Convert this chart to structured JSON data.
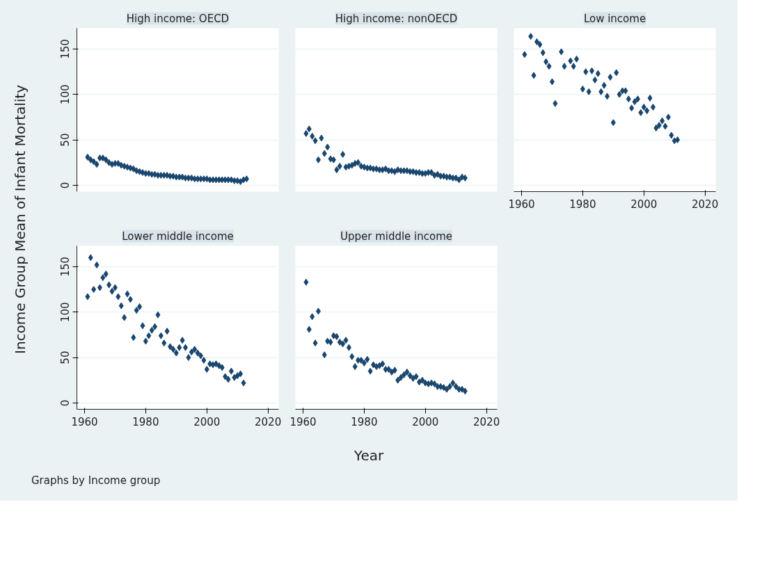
{
  "chart_data": [
    {
      "type": "scatter",
      "title": "High income: OECD",
      "ylabel": "Income Group Mean of Infant Mortality",
      "color": "#1a476f",
      "marker": "diamond",
      "grid": "y",
      "tick_labels": "y",
      "xlim": [
        1957.5,
        2023.5
      ],
      "ylim": [
        -7,
        173
      ],
      "xticks": [
        1960,
        1980,
        2000,
        2020
      ],
      "yticks": [
        0,
        50,
        100,
        150
      ],
      "x": [
        1961,
        1962,
        1963,
        1964,
        1965,
        1966,
        1967,
        1968,
        1969,
        1970,
        1971,
        1972,
        1973,
        1974,
        1975,
        1976,
        1977,
        1978,
        1979,
        1980,
        1981,
        1982,
        1983,
        1984,
        1985,
        1986,
        1987,
        1988,
        1989,
        1990,
        1991,
        1992,
        1993,
        1994,
        1995,
        1996,
        1997,
        1998,
        1999,
        2000,
        2001,
        2002,
        2003,
        2004,
        2005,
        2006,
        2007,
        2008,
        2009,
        2010,
        2011,
        2012,
        2013
      ],
      "values": [
        31,
        28,
        26,
        23,
        30,
        30,
        28,
        25,
        23,
        24,
        24,
        22,
        21,
        20,
        19,
        18,
        16,
        15,
        14,
        13,
        13,
        12,
        12,
        11,
        11,
        11,
        11,
        10,
        10,
        9,
        9,
        9,
        8,
        8,
        8,
        7,
        7,
        7,
        7,
        7,
        6,
        6,
        6,
        6,
        6,
        6,
        6,
        6,
        5,
        5,
        4,
        6,
        7
      ]
    },
    {
      "type": "scatter",
      "title": "High income: nonOECD",
      "color": "#1a476f",
      "marker": "diamond",
      "grid": "y",
      "tick_labels": false,
      "xlim": [
        1957.5,
        2023.5
      ],
      "ylim": [
        -7,
        173
      ],
      "xticks": [
        1960,
        1980,
        2000,
        2020
      ],
      "yticks": [
        0,
        50,
        100,
        150
      ],
      "x": [
        1961,
        1962,
        1963,
        1964,
        1965,
        1966,
        1967,
        1968,
        1969,
        1970,
        1971,
        1972,
        1973,
        1974,
        1975,
        1976,
        1977,
        1978,
        1979,
        1980,
        1981,
        1982,
        1983,
        1984,
        1985,
        1986,
        1987,
        1988,
        1989,
        1990,
        1991,
        1992,
        1993,
        1994,
        1995,
        1996,
        1997,
        1998,
        1999,
        2000,
        2001,
        2002,
        2003,
        2004,
        2005,
        2006,
        2007,
        2008,
        2009,
        2010,
        2011,
        2012,
        2013
      ],
      "values": [
        57,
        62,
        54,
        49,
        28,
        52,
        35,
        42,
        29,
        28,
        17,
        21,
        34,
        20,
        21,
        22,
        24,
        25,
        21,
        20,
        19,
        19,
        18,
        18,
        17,
        17,
        18,
        16,
        16,
        15,
        17,
        16,
        16,
        16,
        15,
        15,
        14,
        14,
        13,
        13,
        14,
        14,
        11,
        12,
        10,
        10,
        9,
        9,
        8,
        8,
        6,
        9,
        8
      ]
    },
    {
      "type": "scatter",
      "title": "Low income",
      "color": "#1a476f",
      "marker": "diamond",
      "grid": "y",
      "tick_labels": "x",
      "xlim": [
        1957.5,
        2023.5
      ],
      "ylim": [
        -7,
        173
      ],
      "xticks": [
        1960,
        1980,
        2000,
        2020
      ],
      "yticks": [
        0,
        50,
        100,
        150
      ],
      "x": [
        1961,
        1963,
        1964,
        1965,
        1966,
        1967,
        1968,
        1969,
        1970,
        1971,
        1973,
        1974,
        1976,
        1977,
        1978,
        1980,
        1981,
        1982,
        1983,
        1984,
        1985,
        1986,
        1987,
        1988,
        1989,
        1990,
        1991,
        1992,
        1993,
        1994,
        1995,
        1996,
        1997,
        1998,
        1999,
        2000,
        2001,
        2002,
        2003,
        2004,
        2005,
        2006,
        2007,
        2008,
        2009,
        2010,
        2011
      ],
      "values": [
        144,
        164,
        121,
        158,
        155,
        146,
        136,
        131,
        114,
        90,
        147,
        131,
        137,
        131,
        139,
        106,
        125,
        103,
        126,
        116,
        123,
        103,
        110,
        98,
        119,
        69,
        124,
        100,
        104,
        104,
        95,
        85,
        92,
        95,
        80,
        86,
        82,
        96,
        86,
        63,
        66,
        71,
        65,
        75,
        55,
        49,
        50
      ]
    },
    {
      "type": "scatter",
      "title": "Lower middle income",
      "color": "#1a476f",
      "marker": "diamond",
      "grid": "y",
      "xlim": [
        1957.5,
        2023.5
      ],
      "ylim": [
        -7,
        173
      ],
      "xticks": [
        1960,
        1980,
        2000,
        2020
      ],
      "yticks": [
        0,
        50,
        100,
        150
      ],
      "x": [
        1961,
        1962,
        1963,
        1964,
        1965,
        1966,
        1967,
        1968,
        1969,
        1970,
        1971,
        1972,
        1973,
        1974,
        1975,
        1976,
        1977,
        1978,
        1979,
        1980,
        1981,
        1982,
        1983,
        1984,
        1985,
        1986,
        1987,
        1988,
        1989,
        1990,
        1991,
        1992,
        1993,
        1994,
        1995,
        1996,
        1997,
        1998,
        1999,
        2000,
        2001,
        2002,
        2003,
        2004,
        2005,
        2006,
        2007,
        2008,
        2009,
        2010,
        2011,
        2012
      ],
      "values": [
        117,
        160,
        125,
        152,
        127,
        138,
        142,
        130,
        123,
        127,
        117,
        107,
        94,
        120,
        114,
        72,
        102,
        106,
        85,
        68,
        74,
        80,
        84,
        97,
        74,
        66,
        79,
        62,
        59,
        55,
        61,
        69,
        61,
        50,
        56,
        59,
        55,
        52,
        47,
        37,
        43,
        42,
        43,
        41,
        39,
        29,
        26,
        35,
        28,
        30,
        32,
        22
      ]
    },
    {
      "type": "scatter",
      "title": "Upper middle income",
      "xlabel": "Year",
      "annotations": [
        "Graphs by Income group"
      ],
      "color": "#1a476f",
      "marker": "diamond",
      "grid": "y",
      "tick_labels": "x",
      "xlim": [
        1957.5,
        2023.5
      ],
      "ylim": [
        -7,
        173
      ],
      "xticks": [
        1960,
        1980,
        2000,
        2020
      ],
      "yticks": [
        0,
        50,
        100,
        150
      ],
      "x": [
        1961,
        1962,
        1963,
        1964,
        1965,
        1967,
        1968,
        1969,
        1970,
        1971,
        1972,
        1973,
        1974,
        1975,
        1976,
        1977,
        1978,
        1979,
        1980,
        1981,
        1982,
        1983,
        1984,
        1985,
        1986,
        1987,
        1988,
        1989,
        1990,
        1991,
        1992,
        1993,
        1994,
        1995,
        1996,
        1997,
        1998,
        1999,
        2000,
        2001,
        2002,
        2003,
        2004,
        2005,
        2006,
        2007,
        2008,
        2009,
        2010,
        2011,
        2012,
        2013
      ],
      "values": [
        133,
        81,
        95,
        66,
        101,
        53,
        68,
        67,
        74,
        73,
        67,
        65,
        69,
        61,
        51,
        40,
        47,
        47,
        44,
        48,
        35,
        42,
        40,
        41,
        43,
        37,
        37,
        34,
        36,
        25,
        28,
        31,
        34,
        30,
        27,
        29,
        23,
        25,
        22,
        21,
        22,
        21,
        18,
        18,
        17,
        15,
        18,
        22,
        18,
        15,
        15,
        13
      ]
    }
  ]
}
